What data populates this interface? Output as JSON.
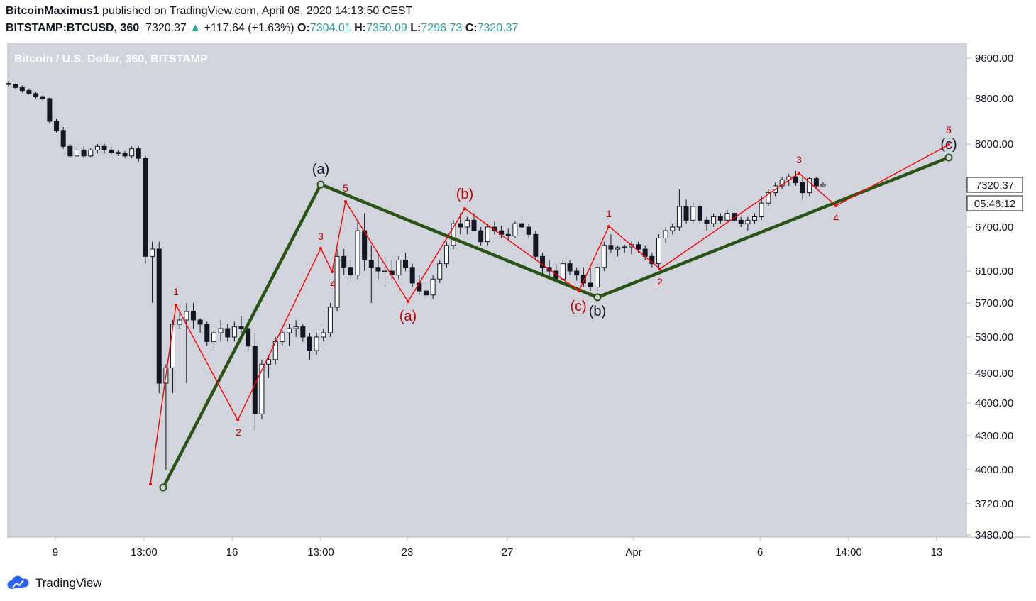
{
  "header": {
    "author": "BitcoinMaximus1",
    "published": "published on TradingView.com, April 08, 2020 14:13:50 CEST",
    "symbol": "BITSTAMP:BTCUSD, 360",
    "last": "7320.37",
    "change": "+117.64 (+1.63%)",
    "o_label": "O:",
    "o_value": "7304.01",
    "h_label": "H:",
    "h_value": "7350.09",
    "l_label": "L:",
    "l_value": "7296.73",
    "c_label": "C:",
    "c_value": "7320.37"
  },
  "footer": {
    "brand": "TradingView"
  },
  "colors": {
    "background": "#d1d4dc",
    "bull": "#ffffff",
    "bear": "#131722",
    "wave_red": "#ff0000",
    "wave_green": "#2a5416",
    "label_red": "#c00000"
  },
  "chart_data": {
    "type": "candlestick",
    "title": "Bitcoin / U.S. Dollar, 360, BITSTAMP",
    "y_ticks": [
      "9600.00",
      "8800.00",
      "8000.00",
      "7320.37",
      "6700.00",
      "6100.00",
      "5700.00",
      "5300.00",
      "4900.00",
      "4600.00",
      "4300.00",
      "4000.00",
      "3720.00",
      "3480.00"
    ],
    "y_values": [
      9600,
      8800,
      8000,
      7320.37,
      6700,
      6100,
      5700,
      5300,
      4900,
      4600,
      4300,
      4000,
      3720,
      3480
    ],
    "x_ticks": [
      "9",
      "13:00",
      "16",
      "13:00",
      "23",
      "27",
      "Apr",
      "6",
      "14:00",
      "13"
    ],
    "price_label": "7320.37",
    "timer_label": "05:46:12",
    "candles_ohlc": [
      [
        9100,
        9150,
        9040,
        9080
      ],
      [
        9080,
        9100,
        9000,
        9020
      ],
      [
        9020,
        9060,
        8920,
        8960
      ],
      [
        8960,
        9000,
        8880,
        8900
      ],
      [
        8900,
        8940,
        8800,
        8840
      ],
      [
        8840,
        8860,
        8760,
        8800
      ],
      [
        8800,
        8820,
        8360,
        8400
      ],
      [
        8400,
        8440,
        8200,
        8240
      ],
      [
        8240,
        8300,
        7920,
        7960
      ],
      [
        7960,
        8000,
        7760,
        7800
      ],
      [
        7800,
        7960,
        7760,
        7900
      ],
      [
        7900,
        7960,
        7760,
        7800
      ],
      [
        7800,
        7940,
        7780,
        7900
      ],
      [
        7900,
        8000,
        7840,
        7960
      ],
      [
        7960,
        8000,
        7840,
        7900
      ],
      [
        7900,
        7960,
        7820,
        7860
      ],
      [
        7860,
        7900,
        7800,
        7840
      ],
      [
        7840,
        7880,
        7760,
        7800
      ],
      [
        7800,
        7960,
        7760,
        7920
      ],
      [
        7920,
        7960,
        7700,
        7760
      ],
      [
        7760,
        7800,
        6200,
        6300
      ],
      [
        6300,
        6500,
        5700,
        6400
      ],
      [
        6400,
        6500,
        4700,
        4800
      ],
      [
        4800,
        5000,
        4000,
        4960
      ],
      [
        4960,
        5500,
        4700,
        5450
      ],
      [
        5450,
        5600,
        5400,
        5500
      ],
      [
        5500,
        5700,
        4800,
        5600
      ],
      [
        5600,
        5700,
        5400,
        5500
      ],
      [
        5500,
        5520,
        5350,
        5450
      ],
      [
        5450,
        5480,
        5200,
        5250
      ],
      [
        5250,
        5400,
        5150,
        5350
      ],
      [
        5350,
        5500,
        5250,
        5400
      ],
      [
        5400,
        5450,
        5250,
        5300
      ],
      [
        5300,
        5480,
        5250,
        5420
      ],
      [
        5420,
        5550,
        5350,
        5400
      ],
      [
        5400,
        5450,
        5150,
        5200
      ],
      [
        5200,
        5350,
        4350,
        4500
      ],
      [
        4500,
        5050,
        4450,
        5000
      ],
      [
        5000,
        5100,
        4850,
        5050
      ],
      [
        5050,
        5300,
        5000,
        5250
      ],
      [
        5250,
        5380,
        5200,
        5350
      ],
      [
        5350,
        5450,
        5200,
        5400
      ],
      [
        5400,
        5500,
        5300,
        5420
      ],
      [
        5420,
        5450,
        5250,
        5300
      ],
      [
        5300,
        5350,
        5050,
        5150
      ],
      [
        5150,
        5350,
        5100,
        5300
      ],
      [
        5300,
        5400,
        5250,
        5350
      ],
      [
        5350,
        5700,
        5300,
        5650
      ],
      [
        5650,
        6400,
        5600,
        6300
      ],
      [
        6300,
        6400,
        6050,
        6150
      ],
      [
        6150,
        6250,
        6000,
        6050
      ],
      [
        6050,
        6800,
        6000,
        6650
      ],
      [
        6650,
        6900,
        6100,
        6250
      ],
      [
        6250,
        6450,
        5700,
        6150
      ],
      [
        6150,
        6350,
        6000,
        6100
      ],
      [
        6100,
        6300,
        5900,
        6100
      ],
      [
        6100,
        6250,
        6000,
        6050
      ],
      [
        6050,
        6300,
        6000,
        6250
      ],
      [
        6250,
        6350,
        6100,
        6150
      ],
      [
        6150,
        6200,
        5900,
        5950
      ],
      [
        5950,
        6050,
        5800,
        5850
      ],
      [
        5850,
        5950,
        5750,
        5800
      ],
      [
        5800,
        6050,
        5750,
        6000
      ],
      [
        6000,
        6250,
        5950,
        6200
      ],
      [
        6200,
        6500,
        6150,
        6450
      ],
      [
        6450,
        6800,
        6400,
        6750
      ],
      [
        6750,
        6900,
        6600,
        6700
      ],
      [
        6700,
        6850,
        6600,
        6800
      ],
      [
        6800,
        6900,
        6650,
        6650
      ],
      [
        6650,
        6700,
        6450,
        6500
      ],
      [
        6500,
        6750,
        6450,
        6700
      ],
      [
        6700,
        6780,
        6600,
        6650
      ],
      [
        6650,
        6720,
        6550,
        6600
      ],
      [
        6600,
        6680,
        6520,
        6580
      ],
      [
        6580,
        6780,
        6550,
        6750
      ],
      [
        6750,
        6850,
        6650,
        6700
      ],
      [
        6700,
        6750,
        6550,
        6600
      ],
      [
        6600,
        6650,
        6250,
        6300
      ],
      [
        6300,
        6350,
        6050,
        6150
      ],
      [
        6150,
        6250,
        6000,
        6100
      ],
      [
        6100,
        6200,
        5950,
        6000
      ],
      [
        6000,
        6250,
        5950,
        6200
      ],
      [
        6200,
        6250,
        6050,
        6100
      ],
      [
        6100,
        6150,
        5980,
        6050
      ],
      [
        6050,
        6150,
        5900,
        5950
      ],
      [
        5950,
        6150,
        5850,
        5900
      ],
      [
        5900,
        6200,
        5850,
        6150
      ],
      [
        6150,
        6500,
        6100,
        6450
      ],
      [
        6450,
        6600,
        6350,
        6400
      ],
      [
        6400,
        6450,
        6300,
        6420
      ],
      [
        6420,
        6460,
        6350,
        6430
      ],
      [
        6430,
        6500,
        6330,
        6460
      ],
      [
        6460,
        6500,
        6350,
        6400
      ],
      [
        6400,
        6450,
        6250,
        6300
      ],
      [
        6300,
        6350,
        6150,
        6200
      ],
      [
        6200,
        6600,
        6150,
        6550
      ],
      [
        6550,
        6700,
        6480,
        6650
      ],
      [
        6650,
        6750,
        6600,
        6700
      ],
      [
        6700,
        7250,
        6650,
        7000
      ],
      [
        7000,
        7100,
        6750,
        6800
      ],
      [
        6800,
        7050,
        6750,
        7000
      ],
      [
        7000,
        7050,
        6750,
        6800
      ],
      [
        6800,
        6850,
        6650,
        6750
      ],
      [
        6750,
        6900,
        6700,
        6850
      ],
      [
        6850,
        6900,
        6750,
        6800
      ],
      [
        6800,
        6950,
        6780,
        6900
      ],
      [
        6900,
        6950,
        6780,
        6800
      ],
      [
        6800,
        6850,
        6700,
        6750
      ],
      [
        6750,
        6850,
        6650,
        6800
      ],
      [
        6800,
        6900,
        6750,
        6850
      ],
      [
        6850,
        7150,
        6800,
        7050
      ],
      [
        7050,
        7250,
        7000,
        7200
      ],
      [
        7200,
        7350,
        7150,
        7300
      ],
      [
        7300,
        7450,
        7250,
        7400
      ],
      [
        7400,
        7500,
        7300,
        7450
      ],
      [
        7450,
        7550,
        7300,
        7350
      ],
      [
        7350,
        7450,
        7100,
        7200
      ],
      [
        7200,
        7450,
        7150,
        7420
      ],
      [
        7420,
        7450,
        7250,
        7300
      ],
      [
        7300,
        7360,
        7290,
        7320
      ]
    ],
    "subwaves_red": {
      "labels": [
        "1",
        "2",
        "3",
        "4",
        "5",
        "(a)",
        "(b)",
        "(c)",
        "1",
        "2",
        "3",
        "4",
        "5"
      ]
    },
    "waves_green": {
      "labels": [
        "(a)",
        "(b)",
        "(c)"
      ]
    }
  }
}
